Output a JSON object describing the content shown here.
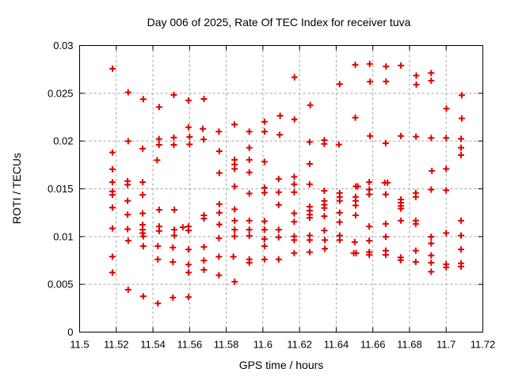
{
  "chart_data": {
    "type": "scatter",
    "title": "Day 006 of 2025, Rate Of TEC Index for receiver tuva",
    "xlabel": "GPS time / hours",
    "ylabel": "ROTI / TECUs",
    "xlim": [
      11.5,
      11.72
    ],
    "ylim": [
      0,
      0.03
    ],
    "xticks": [
      {
        "v": 11.5,
        "label": "11.5"
      },
      {
        "v": 11.52,
        "label": "11.52"
      },
      {
        "v": 11.54,
        "label": "11.54"
      },
      {
        "v": 11.56,
        "label": "11.56"
      },
      {
        "v": 11.58,
        "label": "11.58"
      },
      {
        "v": 11.6,
        "label": "11.6"
      },
      {
        "v": 11.62,
        "label": "11.62"
      },
      {
        "v": 11.64,
        "label": "11.64"
      },
      {
        "v": 11.66,
        "label": "11.66"
      },
      {
        "v": 11.68,
        "label": "11.68"
      },
      {
        "v": 11.7,
        "label": "11.7"
      },
      {
        "v": 11.72,
        "label": "11.72"
      }
    ],
    "yticks": [
      {
        "v": 0,
        "label": "0"
      },
      {
        "v": 0.005,
        "label": "0.005"
      },
      {
        "v": 0.01,
        "label": "0.01"
      },
      {
        "v": 0.015,
        "label": "0.015"
      },
      {
        "v": 0.02,
        "label": "0.02"
      },
      {
        "v": 0.025,
        "label": "0.025"
      },
      {
        "v": 0.03,
        "label": "0.03"
      }
    ],
    "grid": true,
    "grid_color": "#a0a0a0",
    "legend_position": "none",
    "marker": {
      "shape": "plus",
      "color": "#e00000",
      "size": 9,
      "stroke_width": 2
    },
    "series": [
      {
        "name": "ROTI",
        "points": [
          [
            11.518,
            0.02757
          ],
          [
            11.5265,
            0.0251
          ],
          [
            11.5347,
            0.02438
          ],
          [
            11.5434,
            0.02355
          ],
          [
            11.5514,
            0.02483
          ],
          [
            11.5594,
            0.02425
          ],
          [
            11.5678,
            0.02441
          ],
          [
            11.5594,
            0.02145
          ],
          [
            11.5672,
            0.02127
          ],
          [
            11.576,
            0.02098
          ],
          [
            11.5845,
            0.02173
          ],
          [
            11.5926,
            0.02098
          ],
          [
            11.6009,
            0.02203
          ],
          [
            11.6009,
            0.02098
          ],
          [
            11.6094,
            0.02264
          ],
          [
            11.6092,
            0.02065
          ],
          [
            11.6172,
            0.02668
          ],
          [
            11.6419,
            0.02596
          ],
          [
            11.6504,
            0.02798
          ],
          [
            11.6583,
            0.02807
          ],
          [
            11.6585,
            0.02621
          ],
          [
            11.6258,
            0.02375
          ],
          [
            11.6172,
            0.02228
          ],
          [
            11.6504,
            0.02245
          ],
          [
            11.6672,
            0.02781
          ],
          [
            11.6753,
            0.0279
          ],
          [
            11.6672,
            0.02624
          ],
          [
            11.6837,
            0.02685
          ],
          [
            11.6837,
            0.02591
          ],
          [
            11.6918,
            0.02712
          ],
          [
            11.6918,
            0.02632
          ],
          [
            11.7085,
            0.0248
          ],
          [
            11.7001,
            0.02339
          ],
          [
            11.7085,
            0.02237
          ],
          [
            11.5265,
            0.01998
          ],
          [
            11.5344,
            0.01921
          ],
          [
            11.5433,
            0.02021
          ],
          [
            11.5433,
            0.0196
          ],
          [
            11.5514,
            0.02037
          ],
          [
            11.5514,
            0.0196
          ],
          [
            11.5179,
            0.0188
          ],
          [
            11.5423,
            0.01799
          ],
          [
            11.5179,
            0.01705
          ],
          [
            11.5179,
            0.0157
          ],
          [
            11.5262,
            0.01581
          ],
          [
            11.5262,
            0.01542
          ],
          [
            11.5344,
            0.0157
          ],
          [
            11.5179,
            0.01473
          ],
          [
            11.5179,
            0.01437
          ],
          [
            11.5344,
            0.01437
          ],
          [
            11.5262,
            0.01373
          ],
          [
            11.5179,
            0.01304
          ],
          [
            11.5262,
            0.0123
          ],
          [
            11.5344,
            0.01243
          ],
          [
            11.5434,
            0.0128
          ],
          [
            11.5517,
            0.0128
          ],
          [
            11.5344,
            0.01124
          ],
          [
            11.5179,
            0.01086
          ],
          [
            11.5262,
            0.01077
          ],
          [
            11.5344,
            0.01072
          ],
          [
            11.5344,
            0.01036
          ],
          [
            11.5434,
            0.01106
          ],
          [
            11.5434,
            0.01058
          ],
          [
            11.5517,
            0.01072
          ],
          [
            11.5517,
            0.01011
          ],
          [
            11.56,
            0.02043
          ],
          [
            11.56,
            0.01965
          ],
          [
            11.5677,
            0.02017
          ],
          [
            11.5762,
            0.01894
          ],
          [
            11.5926,
            0.0193
          ],
          [
            11.5846,
            0.01803
          ],
          [
            11.5846,
            0.01755
          ],
          [
            11.5846,
            0.01708
          ],
          [
            11.5926,
            0.01803
          ],
          [
            11.6009,
            0.01783
          ],
          [
            11.5762,
            0.01666
          ],
          [
            11.5926,
            0.01672
          ],
          [
            11.6086,
            0.01603
          ],
          [
            11.5846,
            0.01525
          ],
          [
            11.5926,
            0.01451
          ],
          [
            11.6009,
            0.01512
          ],
          [
            11.6009,
            0.01459
          ],
          [
            11.6086,
            0.01465
          ],
          [
            11.6086,
            0.01332
          ],
          [
            11.5762,
            0.0134
          ],
          [
            11.5762,
            0.01249
          ],
          [
            11.5846,
            0.01285
          ],
          [
            11.5678,
            0.01222
          ],
          [
            11.5678,
            0.01188
          ],
          [
            11.5762,
            0.01127
          ],
          [
            11.5846,
            0.01166
          ],
          [
            11.5846,
            0.01072
          ],
          [
            11.5926,
            0.01166
          ],
          [
            11.6009,
            0.0116
          ],
          [
            11.5594,
            0.01106
          ],
          [
            11.5594,
            0.01064
          ],
          [
            11.5926,
            0.01072
          ],
          [
            11.6009,
            0.01072
          ],
          [
            11.5563,
            0.01097
          ],
          [
            11.5845,
            0.01003
          ],
          [
            11.5926,
            0.01008
          ],
          [
            11.6086,
            0.01072
          ],
          [
            11.6255,
            0.0199
          ],
          [
            11.6335,
            0.0201
          ],
          [
            11.6335,
            0.01971
          ],
          [
            11.6415,
            0.01963
          ],
          [
            11.6585,
            0.02054
          ],
          [
            11.6255,
            0.01761
          ],
          [
            11.6171,
            0.01625
          ],
          [
            11.6171,
            0.01548
          ],
          [
            11.6171,
            0.01465
          ],
          [
            11.6255,
            0.01548
          ],
          [
            11.6335,
            0.01479
          ],
          [
            11.6507,
            0.01525
          ],
          [
            11.6518,
            0.01525
          ],
          [
            11.658,
            0.0157
          ],
          [
            11.658,
            0.01492
          ],
          [
            11.658,
            0.01442
          ],
          [
            11.6419,
            0.01456
          ],
          [
            11.6419,
            0.01415
          ],
          [
            11.6419,
            0.01373
          ],
          [
            11.6506,
            0.01415
          ],
          [
            11.6506,
            0.01373
          ],
          [
            11.6506,
            0.01326
          ],
          [
            11.6335,
            0.01373
          ],
          [
            11.6335,
            0.01332
          ],
          [
            11.6335,
            0.01299
          ],
          [
            11.6255,
            0.01313
          ],
          [
            11.6255,
            0.01271
          ],
          [
            11.6255,
            0.0123
          ],
          [
            11.6255,
            0.01197
          ],
          [
            11.6171,
            0.01243
          ],
          [
            11.6171,
            0.01155
          ],
          [
            11.6419,
            0.01249
          ],
          [
            11.6419,
            0.01152
          ],
          [
            11.6506,
            0.01222
          ],
          [
            11.6335,
            0.01213
          ],
          [
            11.6335,
            0.01064
          ],
          [
            11.658,
            0.01106
          ],
          [
            11.667,
            0.01977
          ],
          [
            11.6753,
            0.02054
          ],
          [
            11.6835,
            0.02046
          ],
          [
            11.6918,
            0.02033
          ],
          [
            11.7,
            0.02033
          ],
          [
            11.7081,
            0.02023
          ],
          [
            11.7081,
            0.0193
          ],
          [
            11.7081,
            0.01853
          ],
          [
            11.6922,
            0.01687
          ],
          [
            11.7,
            0.01708
          ],
          [
            11.6665,
            0.01564
          ],
          [
            11.668,
            0.01564
          ],
          [
            11.6918,
            0.01492
          ],
          [
            11.7,
            0.01484
          ],
          [
            11.667,
            0.01442
          ],
          [
            11.6834,
            0.01456
          ],
          [
            11.6834,
            0.01415
          ],
          [
            11.6753,
            0.01388
          ],
          [
            11.6753,
            0.01354
          ],
          [
            11.6753,
            0.01321
          ],
          [
            11.6753,
            0.01293
          ],
          [
            11.6753,
            0.01166
          ],
          [
            11.6834,
            0.01166
          ],
          [
            11.6834,
            0.01133
          ],
          [
            11.667,
            0.01133
          ],
          [
            11.7081,
            0.01166
          ],
          [
            11.7,
            0.01037
          ],
          [
            11.5265,
            0.00956
          ],
          [
            11.5347,
            0.01003
          ],
          [
            11.5347,
            0.009
          ],
          [
            11.5427,
            0.009
          ],
          [
            11.5179,
            0.0079
          ],
          [
            11.5427,
            0.00762
          ],
          [
            11.5509,
            0.00886
          ],
          [
            11.5509,
            0.00734
          ],
          [
            11.5179,
            0.00624
          ],
          [
            11.5265,
            0.00444
          ],
          [
            11.5347,
            0.00375
          ],
          [
            11.5509,
            0.00361
          ],
          [
            11.5427,
            0.003
          ],
          [
            11.5594,
            0.00865
          ],
          [
            11.5678,
            0.00892
          ],
          [
            11.576,
            0.00983
          ],
          [
            11.6009,
            0.00975
          ],
          [
            11.6009,
            0.009
          ],
          [
            11.6086,
            0.00992
          ],
          [
            11.6086,
            0.00762
          ],
          [
            11.576,
            0.0079
          ],
          [
            11.5839,
            0.0079
          ],
          [
            11.5926,
            0.00762
          ],
          [
            11.5926,
            0.00726
          ],
          [
            11.6009,
            0.00762
          ],
          [
            11.5678,
            0.00749
          ],
          [
            11.5594,
            0.00707
          ],
          [
            11.5594,
            0.00624
          ],
          [
            11.5678,
            0.00651
          ],
          [
            11.576,
            0.00596
          ],
          [
            11.5846,
            0.00527
          ],
          [
            11.5594,
            0.00367
          ],
          [
            11.6171,
            0.01003
          ],
          [
            11.6171,
            0.00964
          ],
          [
            11.6171,
            0.00826
          ],
          [
            11.6255,
            0.01011
          ],
          [
            11.6255,
            0.00964
          ],
          [
            11.6255,
            0.00837
          ],
          [
            11.6338,
            0.00964
          ],
          [
            11.6338,
            0.00873
          ],
          [
            11.6419,
            0.01011
          ],
          [
            11.6419,
            0.00964
          ],
          [
            11.6501,
            0.00942
          ],
          [
            11.6496,
            0.00826
          ],
          [
            11.6509,
            0.00826
          ],
          [
            11.658,
            0.00956
          ],
          [
            11.658,
            0.00837
          ],
          [
            11.658,
            0.00809
          ],
          [
            11.667,
            0.00998
          ],
          [
            11.667,
            0.00853
          ],
          [
            11.667,
            0.00809
          ],
          [
            11.6752,
            0.00782
          ],
          [
            11.6752,
            0.00753
          ],
          [
            11.6834,
            0.00853
          ],
          [
            11.6834,
            0.00734
          ],
          [
            11.6918,
            0.00998
          ],
          [
            11.6918,
            0.00928
          ],
          [
            11.6918,
            0.00803
          ],
          [
            11.6918,
            0.00726
          ],
          [
            11.6918,
            0.00632
          ],
          [
            11.7,
            0.0071
          ],
          [
            11.7,
            0.00679
          ],
          [
            11.7081,
            0.01011
          ],
          [
            11.7081,
            0.00865
          ],
          [
            11.7081,
            0.0072
          ],
          [
            11.7081,
            0.00687
          ]
        ]
      }
    ]
  }
}
